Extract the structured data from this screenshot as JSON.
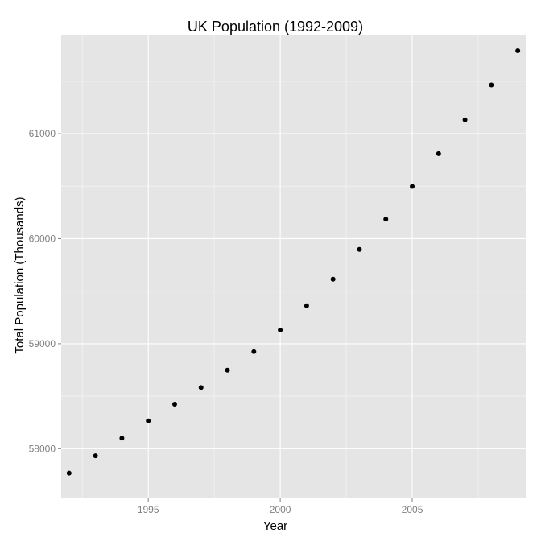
{
  "chart_data": {
    "type": "scatter",
    "title": "UK Population (1992-2009)",
    "xlabel": "Year",
    "ylabel": "Total Population (Thousands)",
    "xlim": [
      1991.7,
      2009.3
    ],
    "ylim": [
      57527,
      61936
    ],
    "x_ticks": [
      1995,
      2000,
      2005
    ],
    "x_tick_labels": [
      "1995",
      "2000",
      "2005"
    ],
    "y_ticks": [
      58000,
      59000,
      60000,
      61000
    ],
    "y_tick_labels": [
      "58000",
      "59000",
      "60000",
      "61000"
    ],
    "grid": true,
    "legend": "none",
    "colors": {
      "panel": "#e5e5e5",
      "grid": "#ffffff",
      "point": "#000000"
    },
    "x": [
      1992,
      1993,
      1994,
      1995,
      1996,
      1997,
      1998,
      1999,
      2000,
      2001,
      2002,
      2003,
      2004,
      2005,
      2006,
      2007,
      2008,
      2009
    ],
    "y": [
      57768,
      57932,
      58100,
      58265,
      58424,
      58582,
      58748,
      58924,
      59130,
      59362,
      59615,
      59898,
      60187,
      60498,
      60810,
      61133,
      61464,
      61790
    ]
  }
}
